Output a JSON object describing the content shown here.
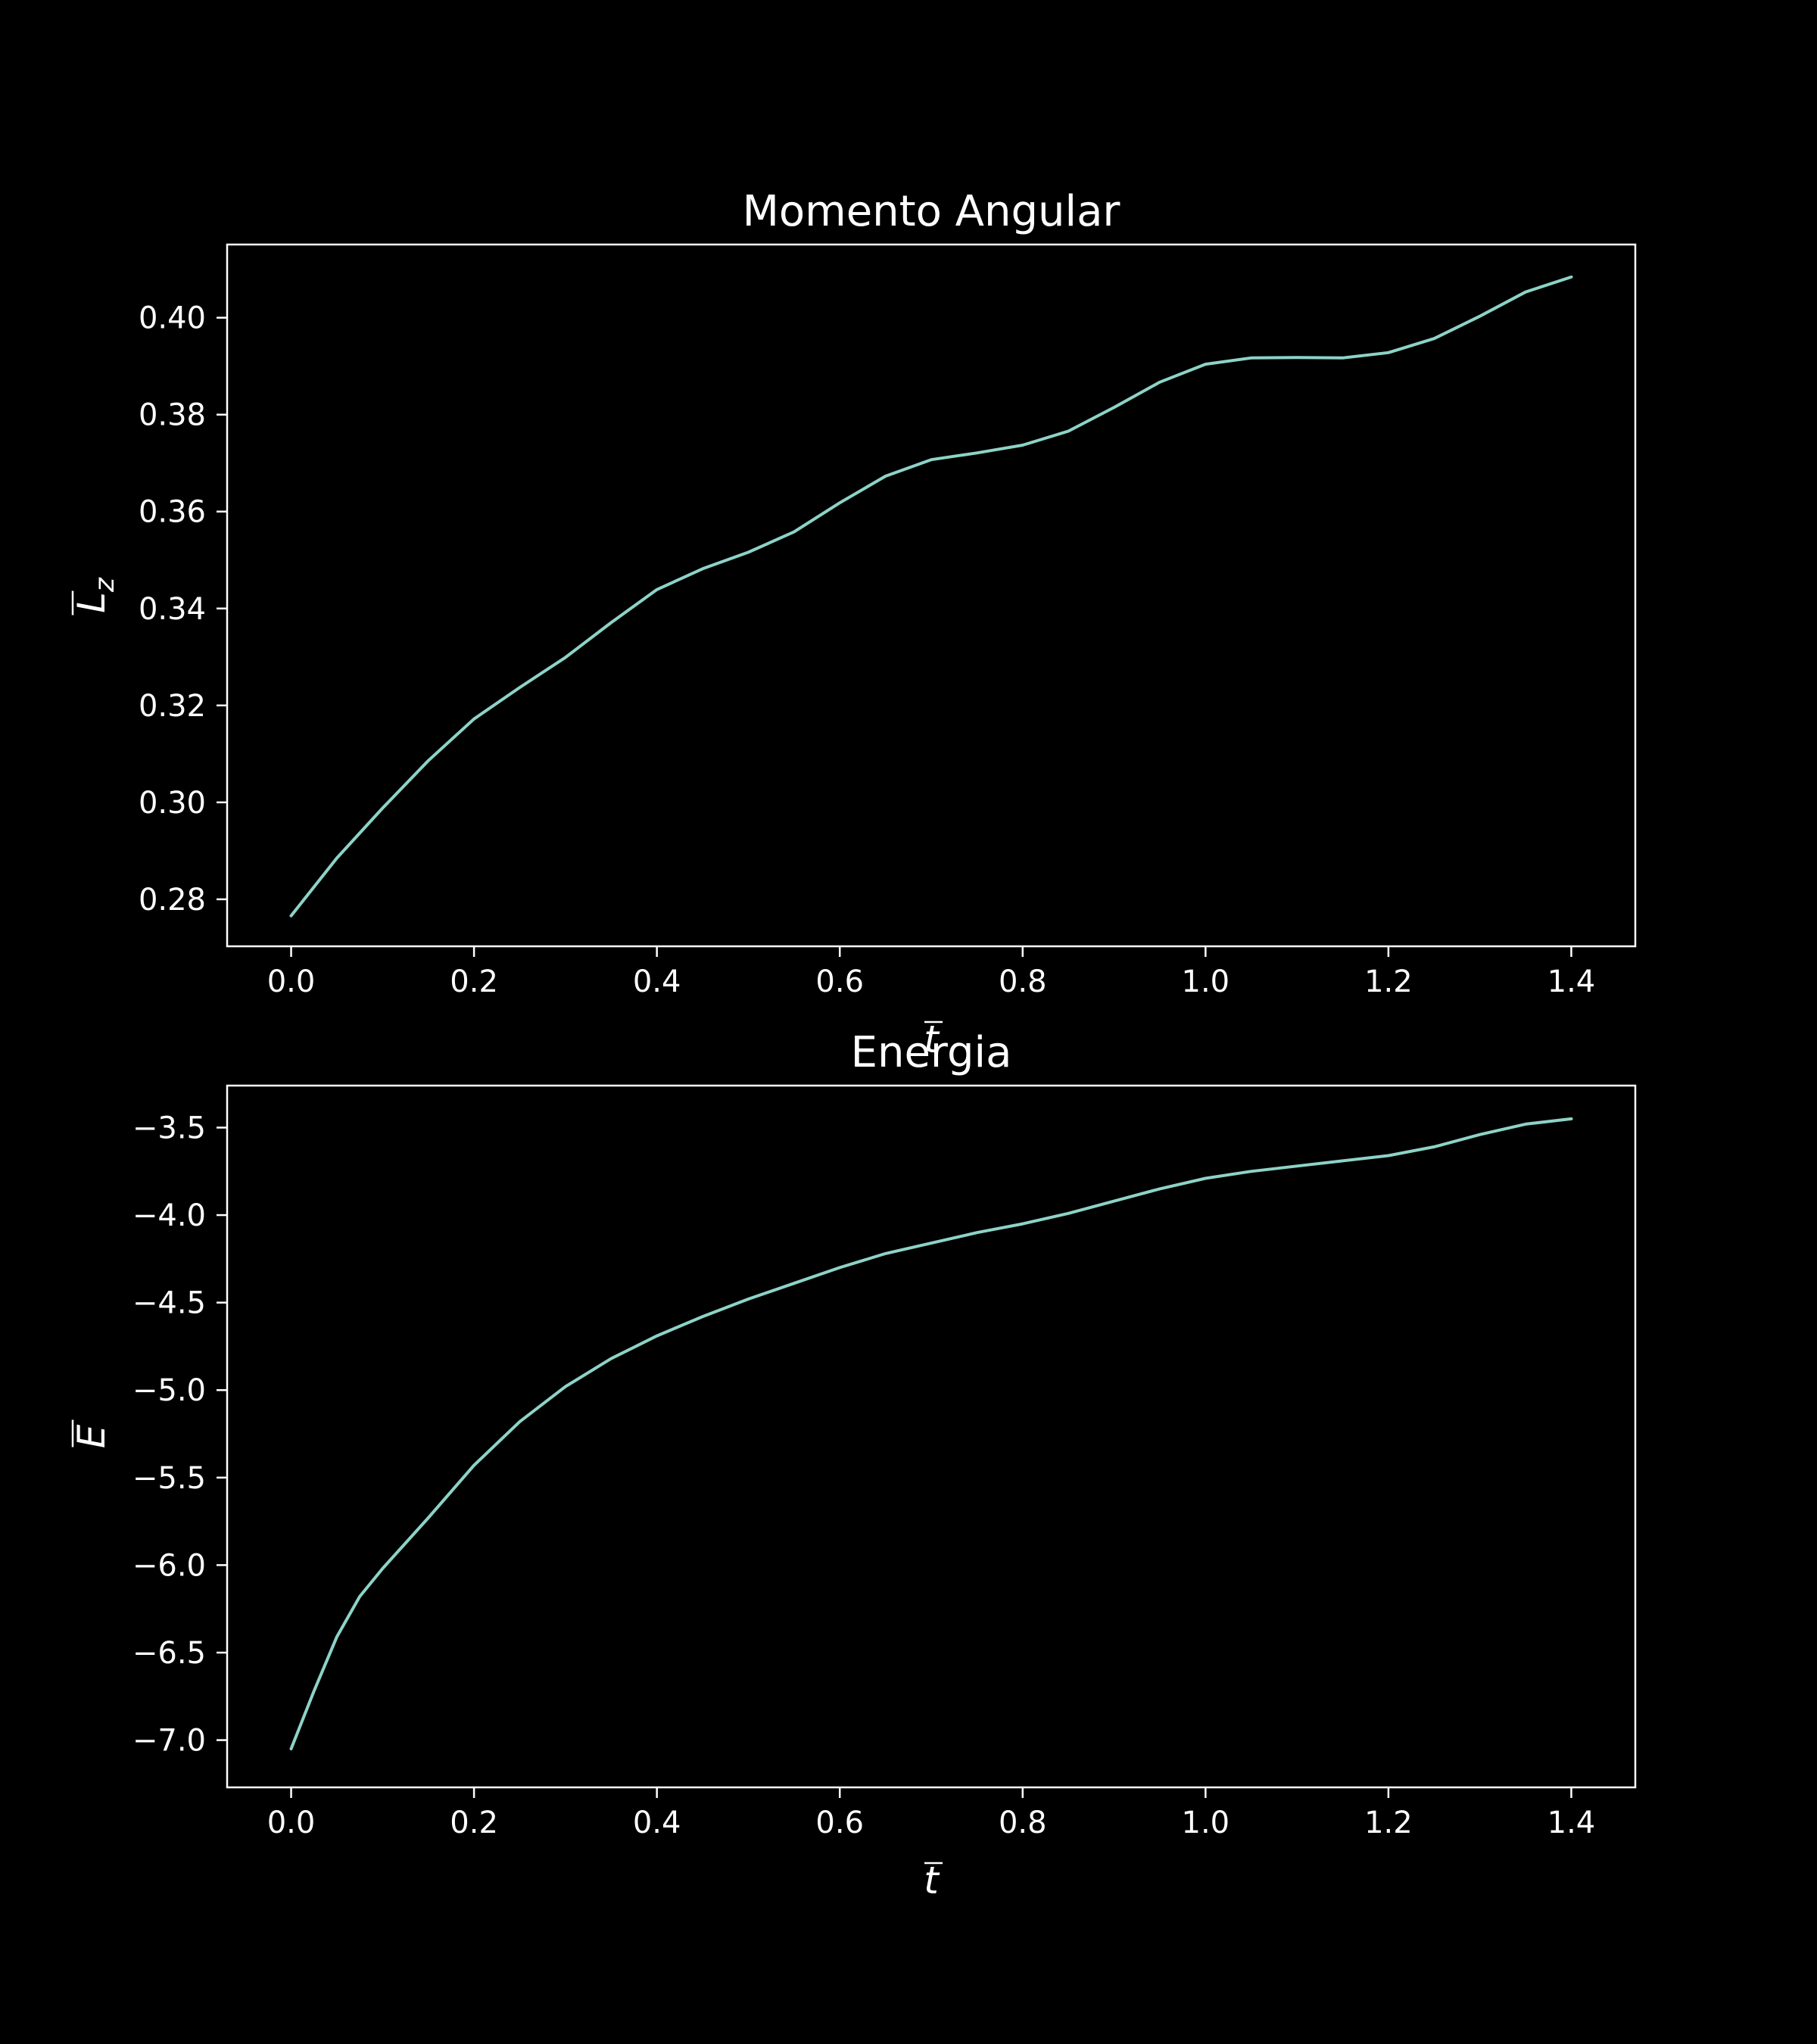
{
  "chart_data": [
    {
      "type": "line",
      "title": "Momento Angular",
      "xlabel": "t",
      "xlabel_accent": "overline",
      "ylabel": "L",
      "ylabel_subscript": "z",
      "ylabel_accent": "overline",
      "xlim": [
        -0.07,
        1.47
      ],
      "ylim": [
        0.2703,
        0.4151
      ],
      "xticks": [
        0.0,
        0.2,
        0.4,
        0.6,
        0.8,
        1.0,
        1.2,
        1.4
      ],
      "xtick_labels": [
        "0.0",
        "0.2",
        "0.4",
        "0.6",
        "0.8",
        "1.0",
        "1.2",
        "1.4"
      ],
      "yticks": [
        0.28,
        0.3,
        0.32,
        0.34,
        0.36,
        0.38,
        0.4
      ],
      "ytick_labels": [
        "0.28",
        "0.30",
        "0.32",
        "0.34",
        "0.36",
        "0.38",
        "0.40"
      ],
      "grid": false,
      "line_color": "#8dd3c7",
      "series": [
        {
          "x": [
            0.0,
            0.05,
            0.1,
            0.15,
            0.2,
            0.25,
            0.3,
            0.35,
            0.4,
            0.45,
            0.5,
            0.55,
            0.6,
            0.65,
            0.7,
            0.75,
            0.8,
            0.85,
            0.9,
            0.95,
            1.0,
            1.05,
            1.1,
            1.15,
            1.2,
            1.25,
            1.3,
            1.35,
            1.4
          ],
          "values": [
            0.2766,
            0.2885,
            0.2988,
            0.3086,
            0.3172,
            0.3237,
            0.3299,
            0.3371,
            0.3439,
            0.3482,
            0.3516,
            0.3558,
            0.3618,
            0.3673,
            0.3707,
            0.3721,
            0.3737,
            0.3766,
            0.3815,
            0.3867,
            0.3904,
            0.3917,
            0.3918,
            0.3917,
            0.3928,
            0.3957,
            0.4003,
            0.4053,
            0.4084
          ]
        }
      ]
    },
    {
      "type": "line",
      "title": "Energia",
      "xlabel": "t",
      "xlabel_accent": "overline",
      "ylabel": "E",
      "ylabel_accent": "overline",
      "xlim": [
        -0.07,
        1.47
      ],
      "ylim": [
        -7.27,
        -3.26
      ],
      "xticks": [
        0.0,
        0.2,
        0.4,
        0.6,
        0.8,
        1.0,
        1.2,
        1.4
      ],
      "xtick_labels": [
        "0.0",
        "0.2",
        "0.4",
        "0.6",
        "0.8",
        "1.0",
        "1.2",
        "1.4"
      ],
      "yticks": [
        -7.0,
        -6.5,
        -6.0,
        -5.5,
        -5.0,
        -4.5,
        -4.0,
        -3.5
      ],
      "ytick_labels": [
        "−7.0",
        "−6.5",
        "−6.0",
        "−5.5",
        "−5.0",
        "−4.5",
        "−4.0",
        "−3.5"
      ],
      "grid": false,
      "line_color": "#8dd3c7",
      "series": [
        {
          "x": [
            0.0,
            0.025,
            0.05,
            0.075,
            0.1,
            0.15,
            0.2,
            0.25,
            0.3,
            0.35,
            0.4,
            0.45,
            0.5,
            0.55,
            0.6,
            0.65,
            0.7,
            0.75,
            0.8,
            0.85,
            0.9,
            0.95,
            1.0,
            1.05,
            1.1,
            1.15,
            1.2,
            1.25,
            1.3,
            1.35,
            1.4
          ],
          "values": [
            -7.05,
            -6.72,
            -6.41,
            -6.18,
            -6.02,
            -5.73,
            -5.43,
            -5.18,
            -4.98,
            -4.82,
            -4.69,
            -4.58,
            -4.48,
            -4.39,
            -4.3,
            -4.22,
            -4.16,
            -4.1,
            -4.05,
            -3.99,
            -3.92,
            -3.85,
            -3.79,
            -3.75,
            -3.72,
            -3.69,
            -3.66,
            -3.61,
            -3.54,
            -3.48,
            -3.45
          ]
        }
      ]
    }
  ]
}
